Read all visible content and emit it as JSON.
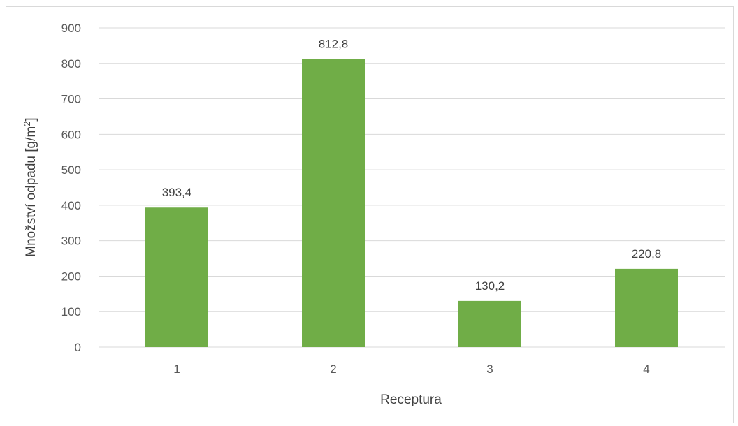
{
  "chart_data": {
    "type": "bar",
    "title": "",
    "categories": [
      "1",
      "2",
      "3",
      "4"
    ],
    "series": [
      {
        "values": [
          393.4,
          812.8,
          130.2,
          220.8
        ]
      }
    ],
    "data_labels": [
      "393,4",
      "812,8",
      "130,2",
      "220,8"
    ],
    "xlabel": "Receptura",
    "ylabel_main": "Množství odpadu [g/m",
    "ylabel_sup": "2",
    "ylabel_end": "]",
    "ylim": [
      0,
      900
    ],
    "yticks": [
      0,
      100,
      200,
      300,
      400,
      500,
      600,
      700,
      800,
      900
    ],
    "grid": true,
    "bar_color": "#70ad47",
    "grid_color": "#d9d9d9"
  }
}
